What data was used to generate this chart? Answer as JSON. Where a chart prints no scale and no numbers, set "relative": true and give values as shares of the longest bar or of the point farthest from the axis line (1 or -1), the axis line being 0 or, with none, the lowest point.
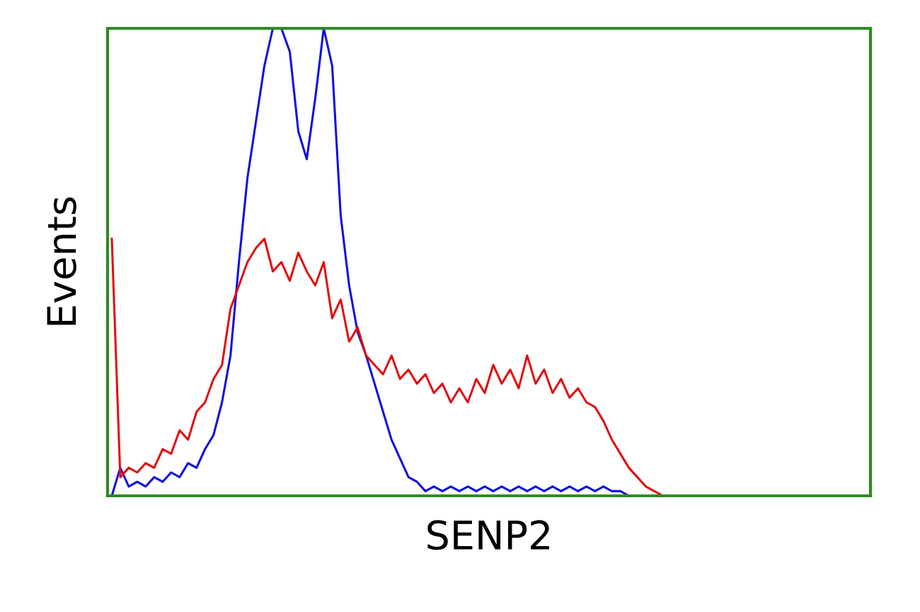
{
  "chart_data": {
    "type": "line",
    "relative": true,
    "xlabel": "SENP2",
    "ylabel": "Events",
    "tick_labels": false,
    "legend": false,
    "categories": [
      null,
      null,
      null,
      null,
      null,
      null,
      null,
      null,
      null,
      null,
      null,
      null,
      null,
      null,
      null,
      null,
      null,
      null,
      null,
      null,
      null,
      null,
      null,
      null,
      null,
      null,
      null,
      null,
      null,
      null,
      null,
      null,
      null,
      null,
      null,
      null,
      null,
      null,
      null,
      null,
      null,
      null,
      null,
      null,
      null,
      null,
      null,
      null,
      null,
      null,
      null,
      null,
      null,
      null,
      null,
      null,
      null,
      null,
      null,
      null,
      null,
      null,
      null,
      null,
      null,
      null,
      null,
      null,
      null,
      null,
      null,
      null,
      null,
      null,
      null,
      null,
      null,
      null,
      null,
      null,
      null,
      null,
      null,
      null,
      null,
      null,
      null,
      null,
      null,
      null
    ],
    "series": [
      {
        "color": "#1010e0",
        "values": [
          0,
          0.06,
          0.02,
          0.03,
          0.02,
          0.04,
          0.03,
          0.05,
          0.04,
          0.07,
          0.06,
          0.1,
          0.13,
          0.2,
          0.3,
          0.5,
          0.68,
          0.8,
          0.92,
          1,
          1,
          0.95,
          0.78,
          0.72,
          0.85,
          1,
          0.92,
          0.6,
          0.45,
          0.35,
          0.3,
          0.24,
          0.18,
          0.12,
          0.08,
          0.04,
          0.03,
          0.01,
          0.02,
          0.01,
          0.02,
          0.01,
          0.02,
          0.01,
          0.02,
          0.01,
          0.02,
          0.01,
          0.02,
          0.01,
          0.02,
          0.01,
          0.02,
          0.01,
          0.02,
          0.01,
          0.02,
          0.01,
          0.02,
          0.01,
          0.01,
          0,
          0,
          null,
          null,
          null,
          null,
          null,
          null,
          null,
          null,
          null,
          null,
          null,
          null,
          null,
          null,
          null,
          null,
          null,
          null,
          null,
          null,
          null,
          null,
          null,
          null,
          null,
          null,
          null
        ]
      },
      {
        "color": "#e01010",
        "values": [
          0.55,
          0.04,
          0.06,
          0.05,
          0.07,
          0.06,
          0.1,
          0.09,
          0.14,
          0.12,
          0.18,
          0.2,
          0.25,
          0.28,
          0.4,
          0.45,
          0.5,
          0.53,
          0.55,
          0.48,
          0.5,
          0.46,
          0.52,
          0.48,
          0.45,
          0.5,
          0.38,
          0.42,
          0.33,
          0.36,
          0.3,
          0.28,
          0.26,
          0.3,
          0.25,
          0.27,
          0.24,
          0.26,
          0.22,
          0.24,
          0.2,
          0.23,
          0.2,
          0.25,
          0.22,
          0.28,
          0.24,
          0.27,
          0.23,
          0.3,
          0.24,
          0.27,
          0.22,
          0.25,
          0.21,
          0.23,
          0.2,
          0.19,
          0.16,
          0.12,
          0.09,
          0.06,
          0.04,
          0.02,
          0.01,
          0,
          null,
          null,
          null,
          null,
          null,
          null,
          null,
          null,
          null,
          null,
          null,
          null,
          null,
          null,
          null,
          null,
          null,
          null,
          null,
          null,
          null,
          null,
          null,
          null
        ]
      }
    ]
  }
}
